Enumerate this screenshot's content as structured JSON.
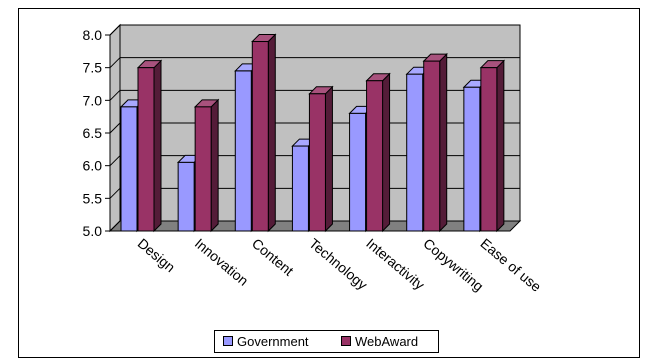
{
  "chart_data": {
    "type": "bar",
    "categories": [
      "Design",
      "Innovation",
      "Content",
      "Technology",
      "Interactivity",
      "Copywriting",
      "Ease of use"
    ],
    "series": [
      {
        "name": "Government",
        "values": [
          6.9,
          6.05,
          7.45,
          6.3,
          6.8,
          7.4,
          7.2
        ]
      },
      {
        "name": "WebAward",
        "values": [
          7.5,
          6.9,
          7.9,
          7.1,
          7.3,
          7.6,
          7.5
        ]
      }
    ],
    "ylim": [
      5.0,
      8.0
    ],
    "yticks": [
      "5.0",
      "5.5",
      "6.0",
      "6.5",
      "7.0",
      "7.5",
      "8.0"
    ],
    "grid": true,
    "legend_position": "bottom",
    "colors": {
      "Government": "#9999ff",
      "WebAward": "#993366",
      "plot_back": "#c0c0c0",
      "plot_floor": "#808080"
    }
  }
}
